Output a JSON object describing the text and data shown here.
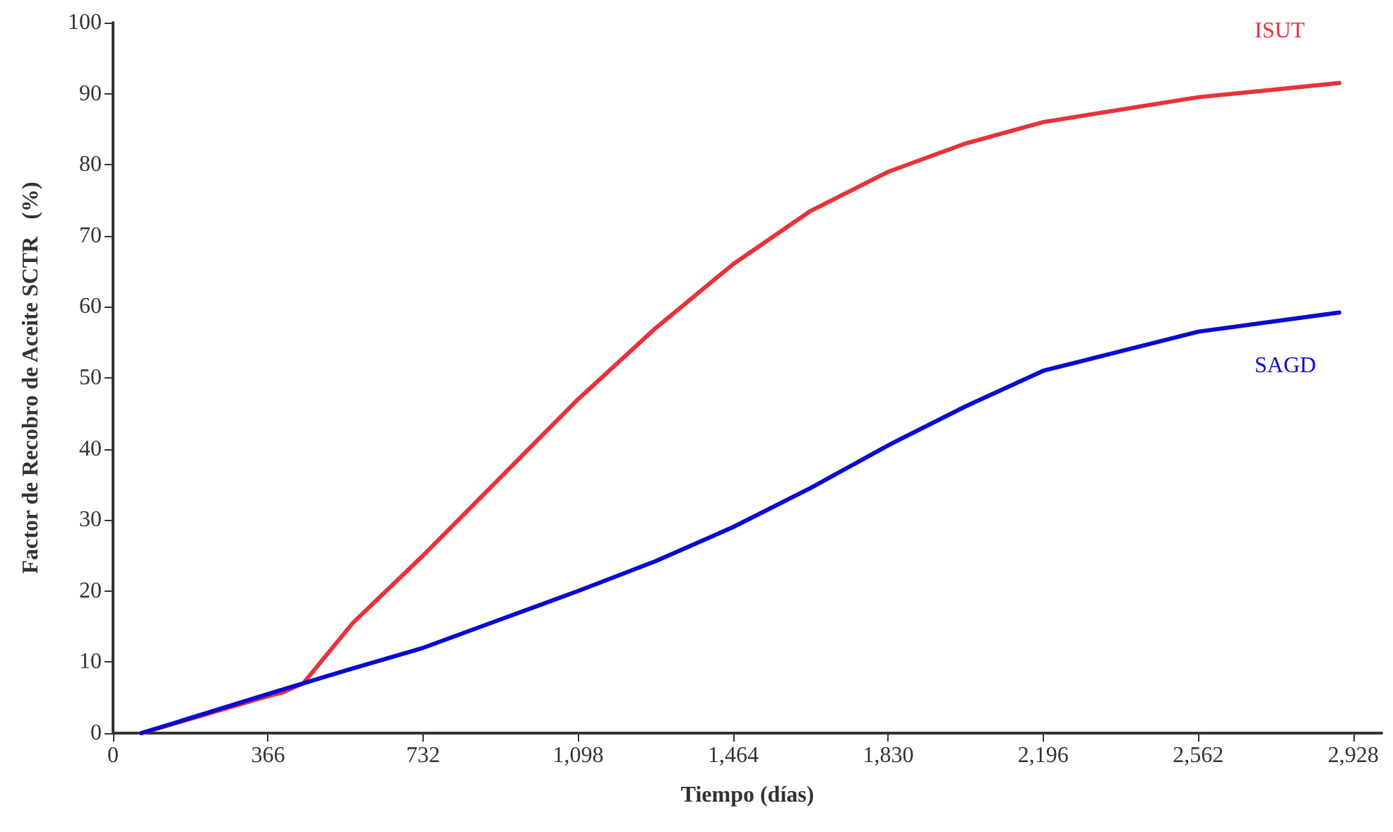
{
  "chart_data": {
    "type": "line",
    "xlabel": "Tiempo (días)",
    "ylabel": "Factor de Recobro de Aceite SCTR   (%)",
    "xlim": [
      0,
      2995
    ],
    "xticks": [
      0,
      366,
      732,
      {
        "value": 1098,
        "label": "1,098"
      },
      {
        "value": 1464,
        "label": "1,464"
      },
      {
        "value": 1830,
        "label": "1,830"
      },
      {
        "value": 2196,
        "label": "2,196"
      },
      {
        "value": 2562,
        "label": "2,562"
      },
      {
        "value": 2928,
        "label": "2,928"
      }
    ],
    "ylim": [
      0,
      100
    ],
    "yticks": [
      0,
      10,
      20,
      30,
      40,
      50,
      60,
      70,
      80,
      90,
      100
    ],
    "grid": false,
    "legend": false,
    "marker": "none",
    "line_style": "solid",
    "series": [
      {
        "name": "ISUT",
        "color": "#e8323a",
        "x": [
          67,
          366,
          399,
          449,
          566,
          732,
          915,
          1098,
          1281,
          1464,
          1647,
          1830,
          2013,
          2196,
          2562,
          2895
        ],
        "values": [
          0,
          5.2,
          5.7,
          7,
          15.5,
          25,
          36,
          47,
          57,
          66,
          73.5,
          79,
          83,
          86,
          89.5,
          91.5
        ]
      },
      {
        "name": "SAGD",
        "color": "#0a0ad0",
        "x": [
          67,
          366,
          549,
          732,
          915,
          1098,
          1281,
          1464,
          1647,
          1830,
          2013,
          2196,
          2562,
          2895
        ],
        "values": [
          0,
          5.5,
          8.8,
          12,
          16,
          20,
          24.2,
          29,
          34.5,
          40.5,
          46,
          51,
          56.5,
          59.2
        ]
      }
    ]
  }
}
